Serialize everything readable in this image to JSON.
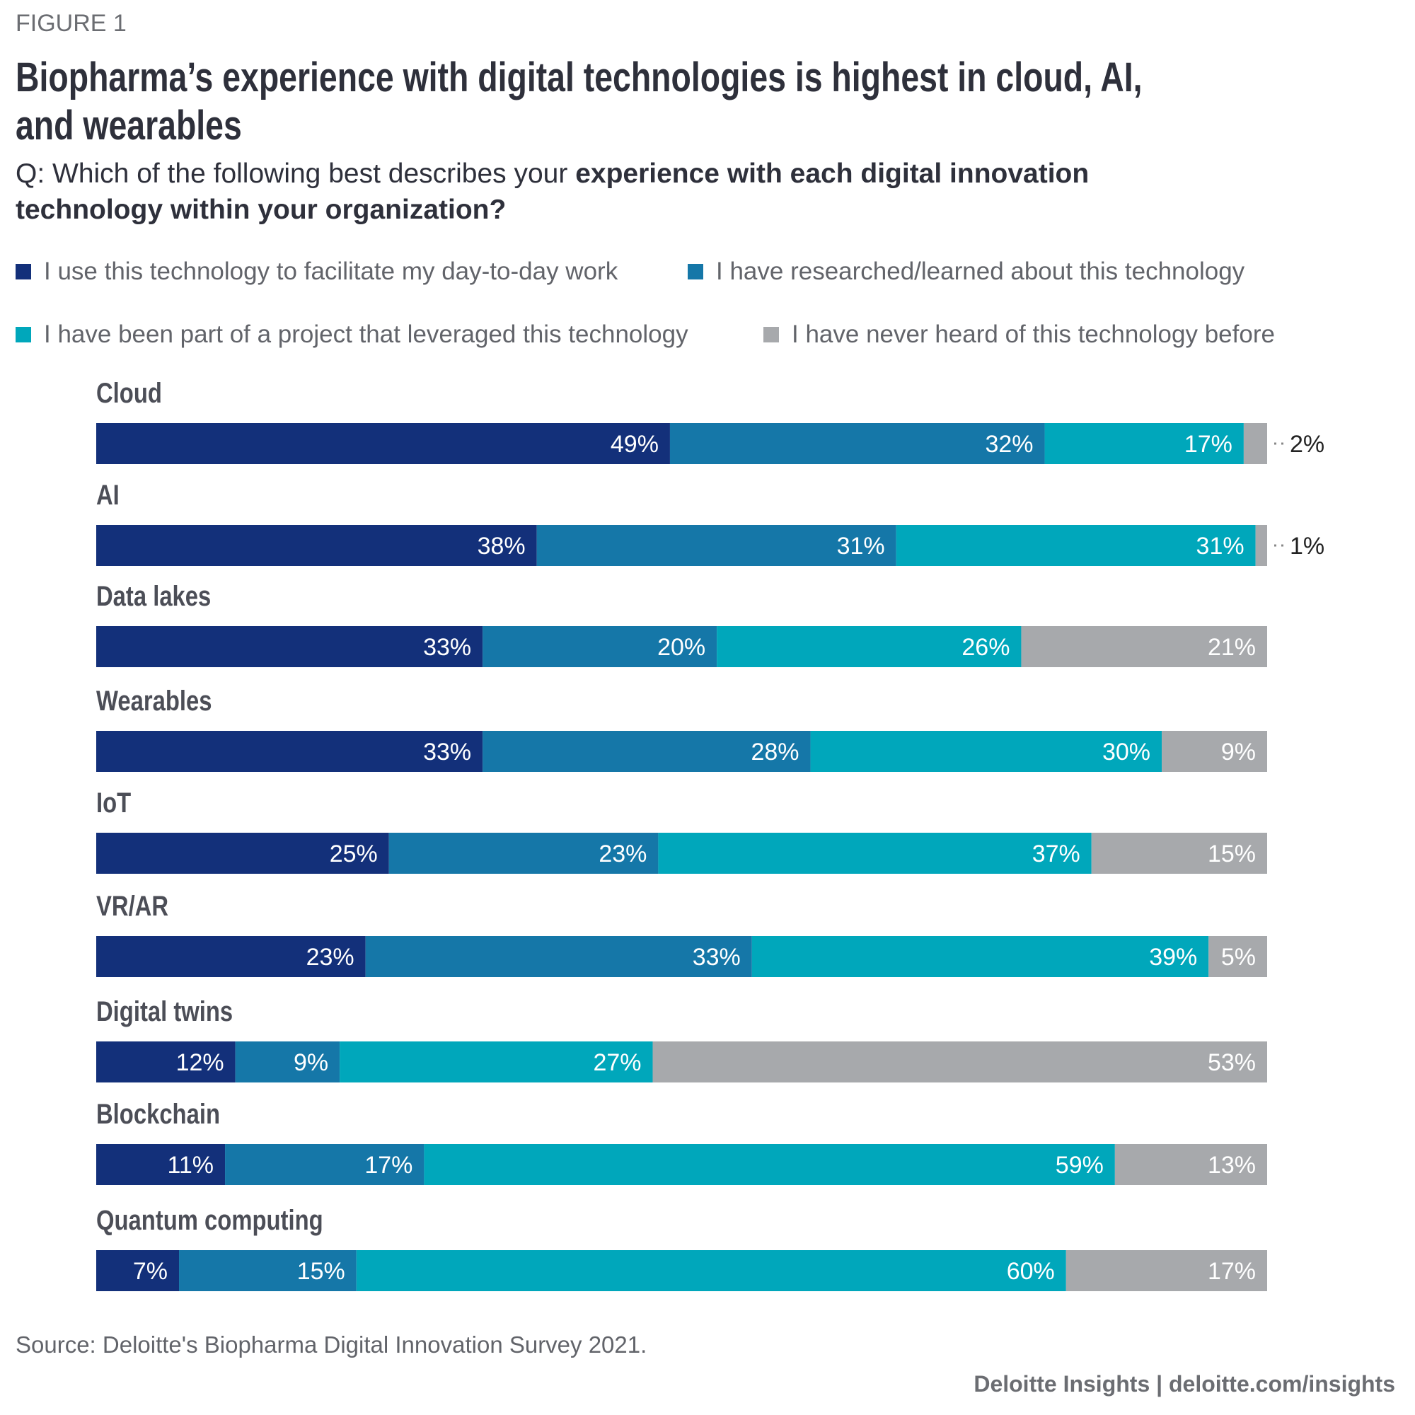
{
  "figure_label": "FIGURE 1",
  "chart_data": {
    "type": "bar",
    "orientation": "horizontal",
    "stacked": true,
    "title_lines": [
      "Biopharma’s experience with digital technologies is highest in cloud, AI,",
      "and wearables"
    ],
    "subtitle": {
      "regular": "Q: Which of the following best describes your ",
      "bold": "experience with each digital innovation technology within your organization?"
    },
    "legend_position": "top",
    "categories": [
      "Cloud",
      "AI",
      "Data lakes",
      "Wearables",
      "IoT",
      "VR/AR",
      "Digital twins",
      "Blockchain",
      "Quantum computing"
    ],
    "series": [
      {
        "name": "I use this technology to facilitate my day-to-day work",
        "color": "#13307a",
        "values": [
          49,
          38,
          33,
          33,
          25,
          23,
          12,
          11,
          7
        ]
      },
      {
        "name": "I have researched/learned about this technology",
        "color": "#1577a8",
        "values": [
          32,
          31,
          20,
          28,
          23,
          33,
          9,
          17,
          15
        ]
      },
      {
        "name": "I have been part of a project that leveraged this technology",
        "color": "#00a7bb",
        "values": [
          17,
          31,
          26,
          30,
          37,
          39,
          27,
          59,
          60
        ]
      },
      {
        "name": "I have never heard of this technology before",
        "color": "#a7a9ac",
        "values": [
          2,
          1,
          21,
          9,
          15,
          5,
          53,
          13,
          17
        ]
      }
    ],
    "value_suffix": "%",
    "xlim": [
      0,
      100
    ],
    "grid": false
  },
  "source": "Source: Deloitte's Biopharma Digital Innovation Survey 2021.",
  "footer": "Deloitte Insights | deloitte.com/insights"
}
